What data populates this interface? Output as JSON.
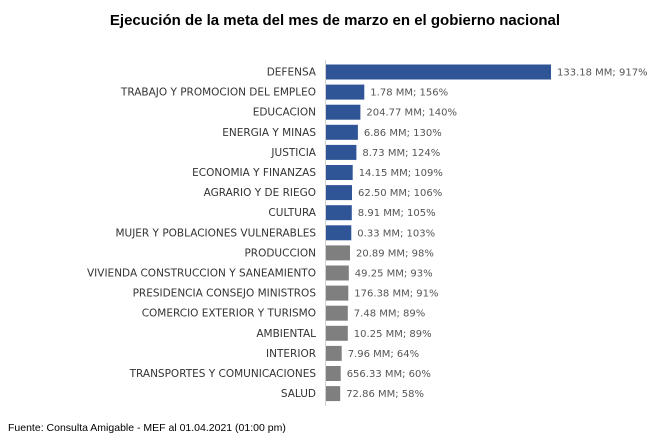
{
  "chart_data": {
    "type": "bar",
    "orientation": "horizontal",
    "title": "Ejecución de la meta del mes de marzo en el gobierno nacional",
    "categories": [
      "DEFENSA",
      "TRABAJO Y PROMOCION DEL EMPLEO",
      "EDUCACION",
      "ENERGIA Y MINAS",
      "JUSTICIA",
      "ECONOMIA Y FINANZAS",
      "AGRARIO Y DE RIEGO",
      "CULTURA",
      "MUJER Y POBLACIONES VULNERABLES",
      "PRODUCCION",
      "VIVIENDA CONSTRUCCION Y SANEAMIENTO",
      "PRESIDENCIA CONSEJO MINISTROS",
      "COMERCIO EXTERIOR Y TURISMO",
      "AMBIENTAL",
      "INTERIOR",
      "TRANSPORTES Y COMUNICACIONES",
      "SALUD"
    ],
    "values": [
      917,
      156,
      140,
      130,
      124,
      109,
      106,
      105,
      103,
      98,
      93,
      91,
      89,
      89,
      64,
      60,
      58
    ],
    "data_labels": [
      "133.18 MM; 917%",
      "1.78 MM; 156%",
      "204.77 MM; 140%",
      "6.86 MM; 130%",
      "8.73 MM; 124%",
      "14.15 MM; 109%",
      "62.50 MM; 106%",
      "8.91 MM; 105%",
      "0.33 MM; 103%",
      "20.89 MM; 98%",
      "49.25 MM; 93%",
      "176.38 MM; 91%",
      "7.48 MM; 89%",
      "10.25 MM; 89%",
      "7.96 MM; 64%",
      "656.33 MM; 60%",
      "72.86 MM; 58%"
    ],
    "threshold_percent": 100,
    "colors": {
      "at_or_above_threshold": "#2f5597",
      "below_threshold": "#7f7f7f"
    },
    "xlim": [
      0,
      917
    ],
    "axis_visible": false,
    "grid": false,
    "legend": "none"
  },
  "footer": {
    "source": "Fuente: Consulta Amigable - MEF al 01.04.2021 (01:00 pm)"
  }
}
